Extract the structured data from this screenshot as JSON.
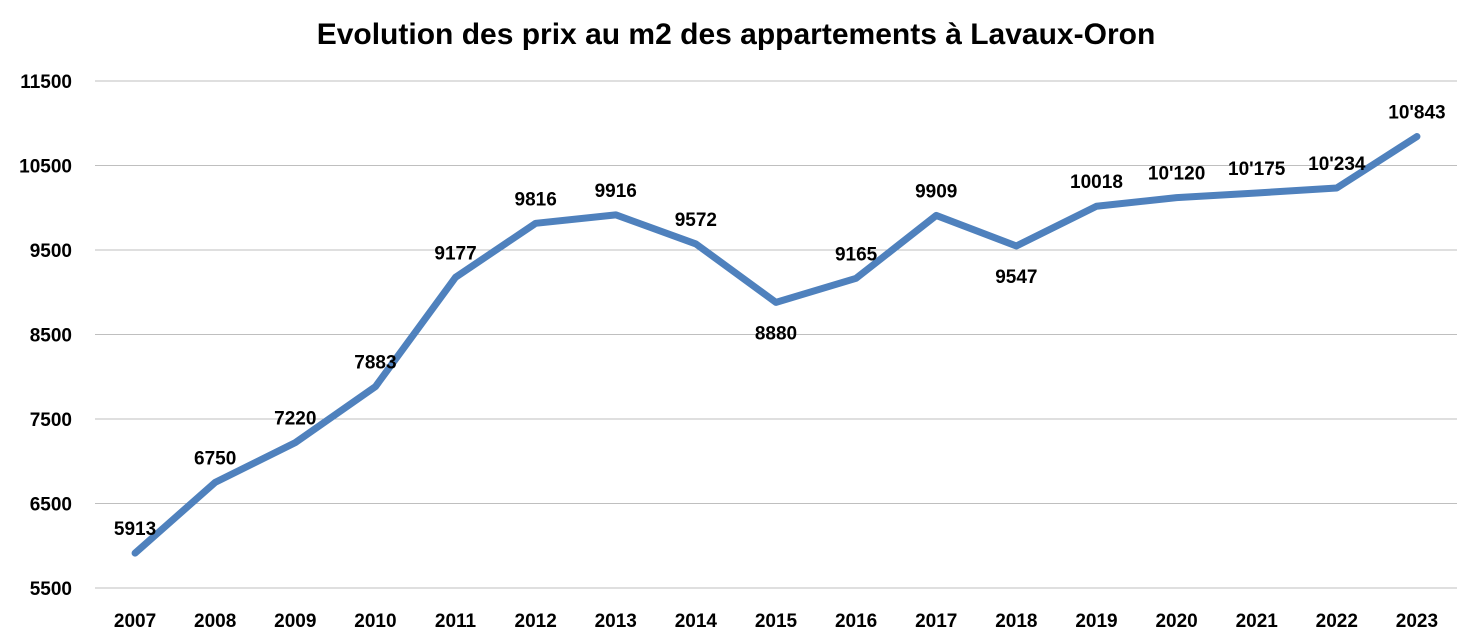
{
  "chart_data": {
    "type": "line",
    "title": "Evolution des prix au m2 des appartements à Lavaux-Oron",
    "categories": [
      "2007",
      "2008",
      "2009",
      "2010",
      "2011",
      "2012",
      "2013",
      "2014",
      "2015",
      "2016",
      "2017",
      "2018",
      "2019",
      "2020",
      "2021",
      "2022",
      "2023"
    ],
    "series": [
      {
        "values": [
          5913,
          6750,
          7220,
          7883,
          9177,
          9816,
          9916,
          9572,
          8880,
          9165,
          9909,
          9547,
          10018,
          10120,
          10175,
          10234,
          10843
        ],
        "labels": [
          "5913",
          "6750",
          "7220",
          "7883",
          "9177",
          "9816",
          "9916",
          "9572",
          "8880",
          "9165",
          "9909",
          "9547",
          "10018",
          "10'120",
          "10'175",
          "10'234",
          "10'843"
        ],
        "color": "#4f81bd"
      }
    ],
    "ylim": [
      5500,
      11500
    ],
    "yticks": [
      "5500",
      "6500",
      "7500",
      "8500",
      "9500",
      "10500",
      "11500"
    ],
    "grid": true,
    "legend": "none"
  }
}
